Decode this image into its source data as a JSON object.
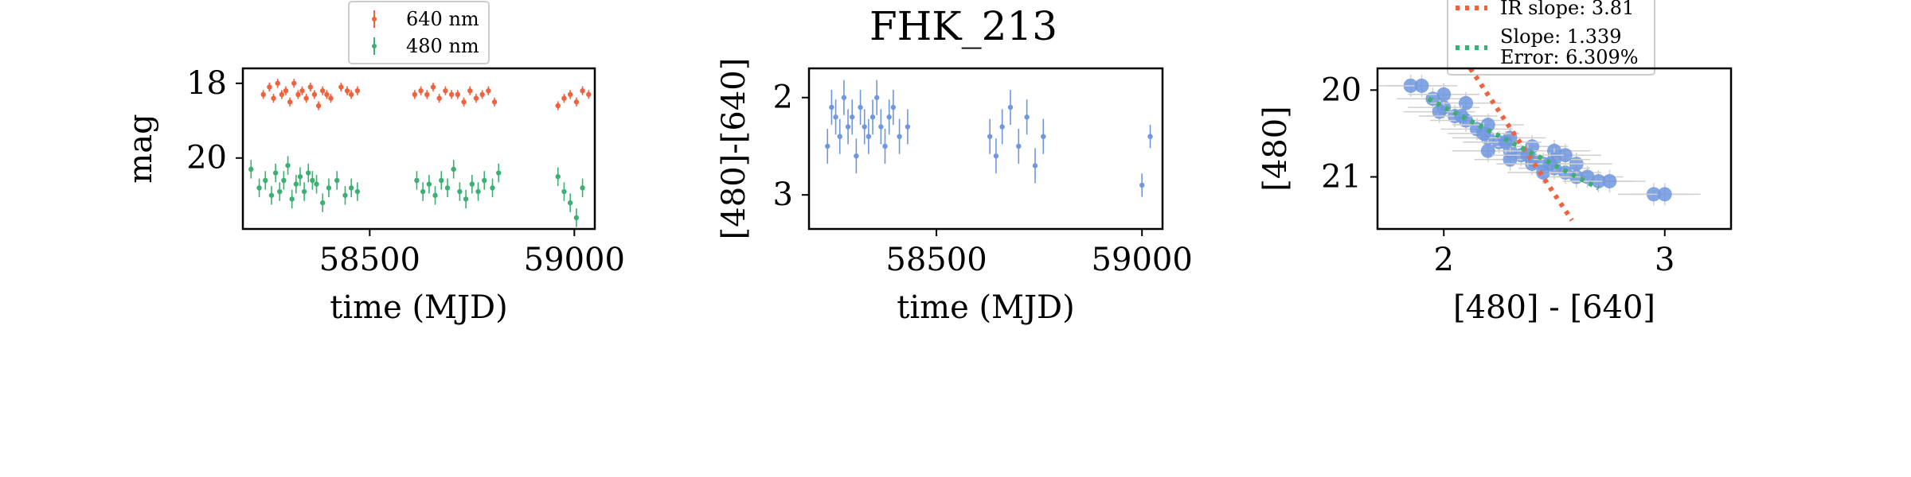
{
  "title": "FHK_213",
  "colors": {
    "red": "#f0623e",
    "green": "#3bb072",
    "blue": "#6f97e0",
    "grey": "#cfcfcf"
  },
  "chart_data": [
    {
      "type": "scatter",
      "xlabel": "time (MJD)",
      "ylabel": "mag",
      "xlim": [
        58190,
        59050
      ],
      "ylim": [
        21.9,
        17.6
      ],
      "y_inverted": true,
      "xticks": [
        {
          "v": 58500,
          "label": "58500"
        },
        {
          "v": 59000,
          "label": "59000"
        }
      ],
      "yticks": [
        {
          "v": 18,
          "label": "18"
        },
        {
          "v": 20,
          "label": "20"
        }
      ],
      "legend": {
        "placement": "above",
        "entries": [
          "640 nm",
          "480 nm"
        ]
      },
      "series": [
        {
          "name": "640 nm",
          "color": "#f0623e",
          "x": [
            58240,
            58255,
            58265,
            58275,
            58285,
            58295,
            58305,
            58315,
            58325,
            58335,
            58345,
            58355,
            58365,
            58375,
            58385,
            58395,
            58405,
            58430,
            58445,
            58455,
            58470,
            58610,
            58625,
            58640,
            58655,
            58670,
            58685,
            58700,
            58715,
            58730,
            58745,
            58760,
            58775,
            58790,
            58805,
            58960,
            58975,
            58990,
            59005,
            59020,
            59035
          ],
          "y": [
            18.3,
            18.1,
            18.4,
            18.0,
            18.3,
            18.2,
            18.5,
            18.0,
            18.3,
            18.2,
            18.4,
            18.1,
            18.3,
            18.6,
            18.2,
            18.3,
            18.4,
            18.1,
            18.2,
            18.3,
            18.2,
            18.3,
            18.2,
            18.3,
            18.1,
            18.4,
            18.2,
            18.3,
            18.3,
            18.5,
            18.2,
            18.4,
            18.3,
            18.2,
            18.5,
            18.6,
            18.4,
            18.3,
            18.5,
            18.2,
            18.3
          ],
          "err": [
            0.12,
            0.12,
            0.12,
            0.12,
            0.12,
            0.12,
            0.12,
            0.12,
            0.12,
            0.12,
            0.12,
            0.12,
            0.12,
            0.12,
            0.12,
            0.12,
            0.12,
            0.12,
            0.12,
            0.12,
            0.12,
            0.12,
            0.12,
            0.12,
            0.12,
            0.12,
            0.12,
            0.12,
            0.12,
            0.12,
            0.12,
            0.12,
            0.12,
            0.12,
            0.12,
            0.12,
            0.12,
            0.12,
            0.12,
            0.12,
            0.12
          ]
        },
        {
          "name": "480 nm",
          "color": "#3bb072",
          "x": [
            58210,
            58230,
            58245,
            58260,
            58270,
            58280,
            58290,
            58300,
            58310,
            58320,
            58330,
            58340,
            58350,
            58360,
            58370,
            58385,
            58400,
            58420,
            58440,
            58455,
            58470,
            58615,
            58630,
            58645,
            58660,
            58675,
            58690,
            58705,
            58720,
            58735,
            58750,
            58765,
            58780,
            58800,
            58815,
            58960,
            58975,
            58990,
            59005,
            59020
          ],
          "y": [
            20.3,
            20.8,
            20.6,
            21.0,
            20.4,
            20.9,
            20.6,
            20.2,
            21.1,
            20.7,
            20.5,
            20.9,
            20.4,
            20.6,
            20.7,
            21.2,
            20.8,
            20.6,
            21.0,
            20.8,
            20.9,
            20.6,
            20.9,
            20.7,
            21.0,
            20.6,
            20.8,
            20.3,
            20.9,
            21.1,
            20.7,
            20.9,
            20.6,
            20.8,
            20.4,
            20.5,
            20.9,
            21.2,
            21.6,
            20.8
          ],
          "err": [
            0.25,
            0.25,
            0.25,
            0.25,
            0.25,
            0.25,
            0.25,
            0.25,
            0.25,
            0.25,
            0.25,
            0.25,
            0.25,
            0.25,
            0.25,
            0.25,
            0.25,
            0.25,
            0.25,
            0.25,
            0.25,
            0.25,
            0.25,
            0.25,
            0.25,
            0.25,
            0.25,
            0.25,
            0.25,
            0.25,
            0.25,
            0.25,
            0.25,
            0.25,
            0.25,
            0.25,
            0.25,
            0.25,
            0.25,
            0.25
          ]
        }
      ]
    },
    {
      "type": "scatter",
      "xlabel": "time (MJD)",
      "ylabel": "[480]-[640]",
      "xlim": [
        58190,
        59050
      ],
      "ylim": [
        3.35,
        1.7
      ],
      "y_inverted": true,
      "xticks": [
        {
          "v": 58500,
          "label": "58500"
        },
        {
          "v": 59000,
          "label": "59000"
        }
      ],
      "yticks": [
        {
          "v": 2,
          "label": "2"
        },
        {
          "v": 3,
          "label": "3"
        }
      ],
      "series": [
        {
          "color": "#6f97e0",
          "x": [
            58235,
            58245,
            58255,
            58265,
            58275,
            58285,
            58295,
            58305,
            58315,
            58325,
            58335,
            58345,
            58355,
            58365,
            58375,
            58385,
            58395,
            58410,
            58430,
            58630,
            58645,
            58660,
            58680,
            58700,
            58720,
            58740,
            58760,
            59000,
            59020
          ],
          "y": [
            2.5,
            2.1,
            2.2,
            2.4,
            2.0,
            2.3,
            2.2,
            2.6,
            2.1,
            2.3,
            2.4,
            2.2,
            2.0,
            2.3,
            2.5,
            2.2,
            2.1,
            2.4,
            2.3,
            2.4,
            2.6,
            2.3,
            2.1,
            2.5,
            2.2,
            2.7,
            2.4,
            2.9,
            2.4
          ],
          "err": [
            0.18,
            0.18,
            0.18,
            0.18,
            0.18,
            0.18,
            0.18,
            0.18,
            0.18,
            0.18,
            0.18,
            0.18,
            0.18,
            0.18,
            0.18,
            0.18,
            0.18,
            0.18,
            0.18,
            0.18,
            0.18,
            0.18,
            0.18,
            0.18,
            0.18,
            0.18,
            0.18,
            0.12,
            0.12
          ]
        }
      ]
    },
    {
      "type": "scatter",
      "xlabel": "[480] - [640]",
      "ylabel": "[480]",
      "xlim": [
        1.7,
        3.3
      ],
      "ylim": [
        21.6,
        19.75
      ],
      "y_inverted": true,
      "xticks": [
        {
          "v": 2,
          "label": "2"
        },
        {
          "v": 3,
          "label": "3"
        }
      ],
      "yticks": [
        {
          "v": 20,
          "label": "20"
        },
        {
          "v": 21,
          "label": "21"
        }
      ],
      "legend": {
        "placement": "above",
        "entries": [
          "IR slope: 3.81",
          "Slope: 1.339\nError: 6.309%"
        ]
      },
      "series": [
        {
          "color": "#6f97e0",
          "x": [
            1.85,
            1.9,
            1.95,
            2.0,
            2.05,
            2.1,
            2.15,
            2.2,
            2.25,
            2.3,
            2.35,
            2.4,
            2.45,
            2.5,
            2.55,
            2.6,
            2.65,
            2.7,
            2.75,
            2.0,
            2.1,
            2.2,
            2.3,
            2.4,
            2.5,
            2.6,
            2.2,
            2.3,
            2.4,
            2.45,
            2.5,
            2.55,
            2.95,
            3.0,
            1.98,
            2.08,
            2.18,
            2.28,
            2.38,
            2.48
          ],
          "y": [
            19.95,
            19.95,
            20.1,
            20.2,
            20.3,
            20.35,
            20.45,
            20.55,
            20.6,
            20.7,
            20.75,
            20.8,
            20.85,
            20.9,
            20.95,
            21.0,
            21.0,
            21.05,
            21.05,
            20.05,
            20.15,
            20.4,
            20.55,
            20.65,
            20.7,
            20.85,
            20.7,
            20.8,
            20.85,
            20.95,
            20.8,
            20.75,
            21.2,
            21.2,
            20.25,
            20.3,
            20.5,
            20.6,
            20.75,
            20.85
          ]
        }
      ],
      "lines": [
        {
          "name": "IR slope: 3.81",
          "color": "#f0623e",
          "style": "dotted",
          "slope": 3.81,
          "x0": 2.12,
          "y0": 19.75,
          "x1": 2.58,
          "y1": 21.5
        },
        {
          "name": "Slope: 1.339",
          "color": "#3bb072",
          "style": "dotted",
          "slope": 1.339,
          "x0": 1.93,
          "y0": 20.1,
          "x1": 2.7,
          "y1": 21.13
        }
      ]
    }
  ]
}
